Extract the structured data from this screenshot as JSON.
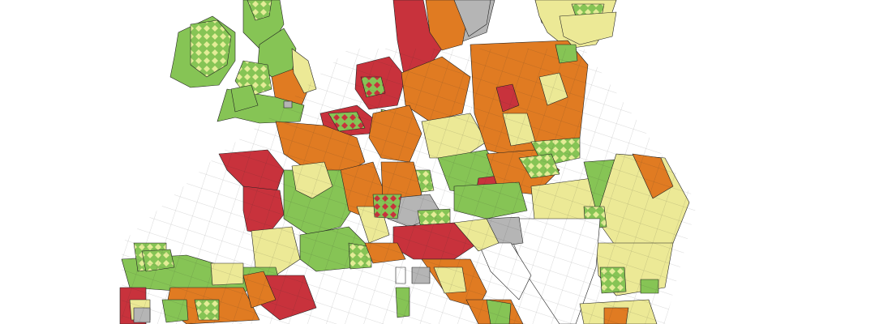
{
  "map": {
    "type": "choropleth",
    "background": "#ffffff",
    "border_color": "#222222",
    "categories": [
      {
        "key": "red",
        "color": "#c8323c"
      },
      {
        "key": "orange",
        "color": "#e07b22"
      },
      {
        "key": "light_yellow",
        "color": "#ece996"
      },
      {
        "key": "green",
        "color": "#86c455"
      },
      {
        "key": "grey",
        "color": "#b5b5b5"
      },
      {
        "key": "nodata",
        "color": "#ffffff"
      }
    ],
    "hatch": {
      "fill": "#86c455",
      "diamond": "#d9e87a"
    },
    "hatch_red": {
      "fill": "#c8323c",
      "diamond": "#86c455"
    }
  }
}
